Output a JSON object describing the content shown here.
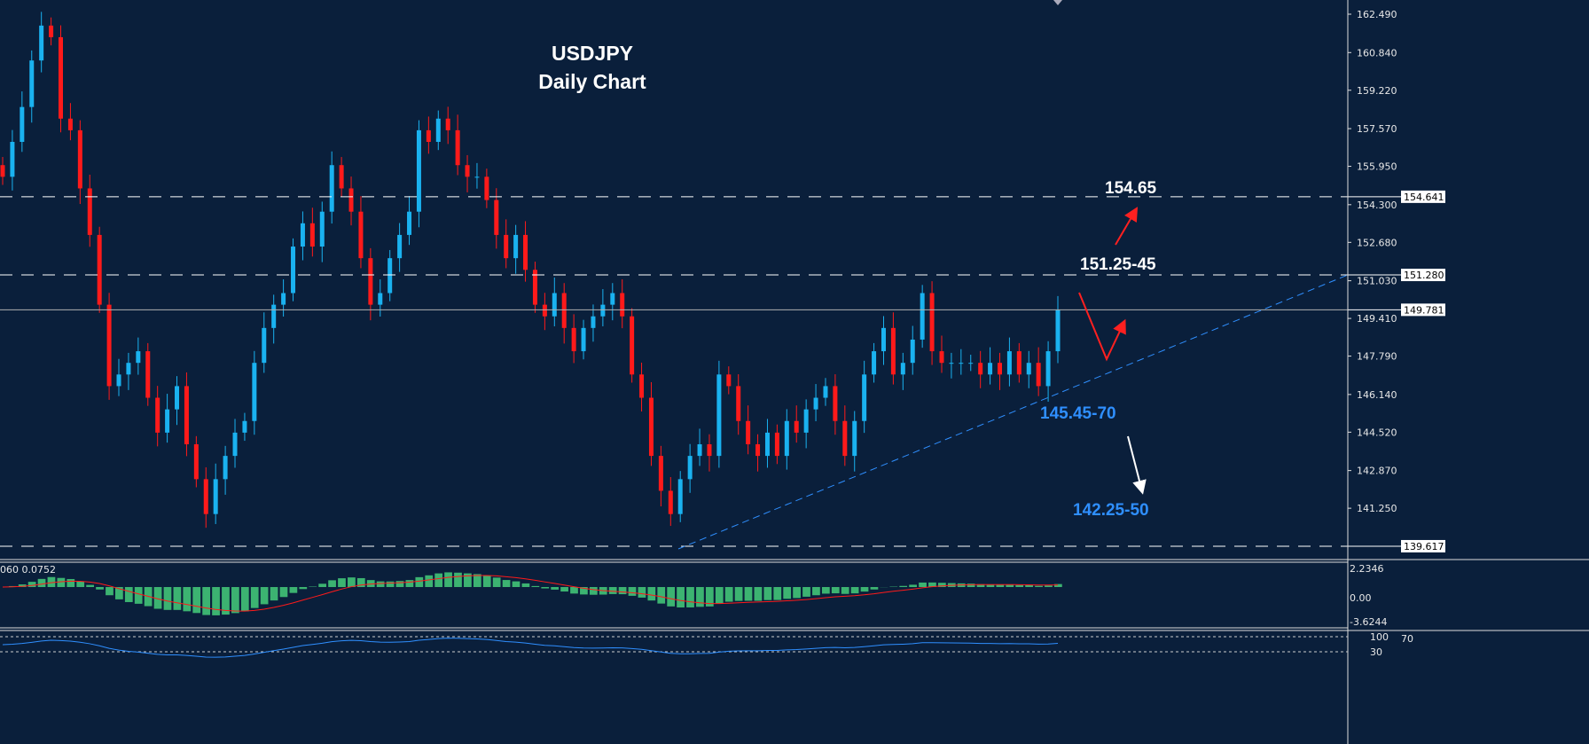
{
  "chart_data": {
    "type": "candlestick",
    "title": "USDJPY",
    "subtitle": "Daily Chart",
    "ylim": [
      139.2,
      163.1
    ],
    "y_ticks": [
      "162.490",
      "160.840",
      "159.220",
      "157.570",
      "155.950",
      "154.300",
      "152.680",
      "151.030",
      "149.410",
      "147.790",
      "146.140",
      "144.520",
      "142.870",
      "141.250"
    ],
    "close": [
      155.5,
      157,
      158.5,
      160.5,
      162,
      161.5,
      158,
      157.5,
      155,
      153,
      150,
      146.5,
      147,
      147.5,
      148,
      146,
      144.5,
      145.5,
      146.5,
      144,
      142.5,
      141,
      142.5,
      143.5,
      144.5,
      145,
      147.5,
      149,
      150,
      150.5,
      152.5,
      153.5,
      152.5,
      154,
      156,
      155,
      154,
      152,
      150,
      150.5,
      152,
      153,
      154,
      157.5,
      157,
      158,
      157.5,
      156,
      155.5,
      155.5,
      154.5,
      153,
      152,
      153,
      151.5,
      150,
      149.5,
      150.5,
      149,
      148,
      149,
      149.5,
      150,
      150.5,
      149.5,
      147,
      146,
      143.5,
      142,
      141,
      142.5,
      143.5,
      144,
      143.5,
      147,
      146.5,
      145,
      144,
      143.5,
      144.5,
      143.5,
      145,
      144.5,
      145.5,
      146,
      146.5,
      145,
      143.5,
      145,
      147,
      148,
      149,
      147,
      147.5,
      148.5,
      150.5,
      148,
      147.5,
      147.5,
      147.5,
      147.5,
      147,
      147.5,
      147,
      148,
      147,
      147.5,
      146.5,
      148,
      149.781
    ],
    "up_color": "#1ab2f0",
    "down_color": "#ff1a1a",
    "horizontal_levels": [
      {
        "value": 154.641,
        "label": "154.641",
        "style": "dashed"
      },
      {
        "value": 151.28,
        "label": "151.280",
        "style": "dashed"
      },
      {
        "value": 139.617,
        "label": "139.617",
        "style": "dashed"
      },
      {
        "value": 149.781,
        "label": "149.781",
        "style": "solid"
      }
    ],
    "trendline": {
      "from": [
        139.6,
        151.28
      ],
      "color": "#2f8fff",
      "style": "dashed"
    },
    "annotations": [
      {
        "text": "154.65",
        "color": "#ffffff"
      },
      {
        "text": "151.25-45",
        "color": "#ffffff"
      },
      {
        "text": "145.45-70",
        "color": "#2f8fff"
      },
      {
        "text": "142.25-50",
        "color": "#2f8fff"
      }
    ],
    "macd_panel": {
      "readout": "060 0.0752",
      "ticks": [
        "2.2346",
        "0.00",
        "-3.6244"
      ],
      "hist_color": "#3cb371",
      "signal_color": "#ff1a1a"
    },
    "rsi_panel": {
      "ticks": [
        "100",
        "70",
        "30"
      ],
      "line_color": "#2f8fff"
    }
  }
}
